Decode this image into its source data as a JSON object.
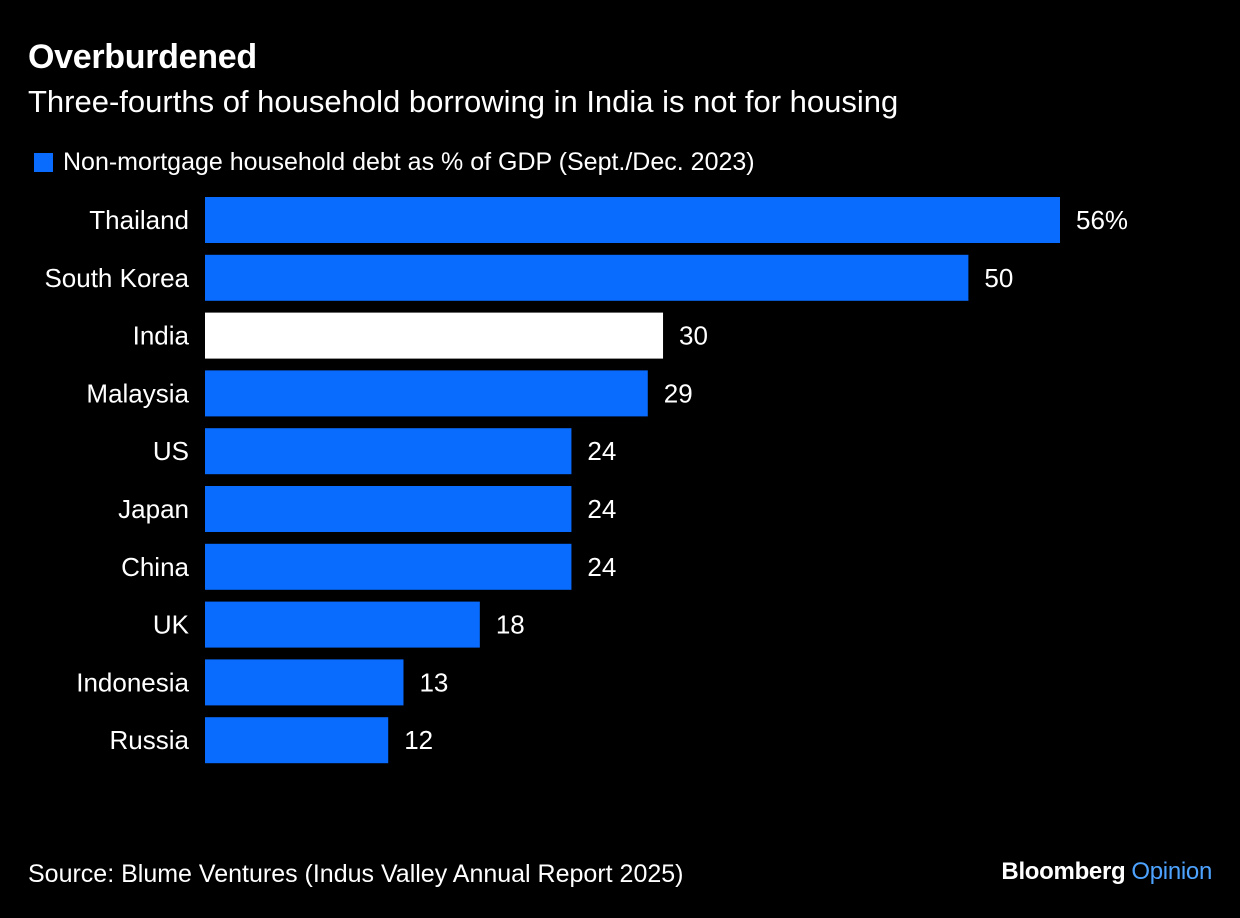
{
  "title": "Overburdened",
  "subtitle": "Three-fourths of household borrowing in India is not for housing",
  "source": "Source: Blume Ventures (Indus Valley Annual Report 2025)",
  "brand": {
    "name": "Bloomberg",
    "suffix": "Opinion",
    "suffix_color": "#4da3ff"
  },
  "colors": {
    "background": "#000000",
    "bar": "#0a6cff",
    "highlight": "#ffffff",
    "text": "#ffffff"
  },
  "chart_data": {
    "type": "bar",
    "orientation": "horizontal",
    "categories": [
      "Thailand",
      "South Korea",
      "India",
      "Malaysia",
      "US",
      "Japan",
      "China",
      "UK",
      "Indonesia",
      "Russia"
    ],
    "series": [
      {
        "name": "Non-mortgage household debt as % of GDP (Sept./Dec. 2023)",
        "values": [
          56,
          50,
          30,
          29,
          24,
          24,
          24,
          18,
          13,
          12
        ]
      }
    ],
    "value_labels": [
      "56%",
      "50",
      "30",
      "29",
      "24",
      "24",
      "24",
      "18",
      "13",
      "12"
    ],
    "highlight_category": "India",
    "xlim": [
      0,
      56
    ],
    "grid": false,
    "legend_position": "top-left",
    "xlabel": "",
    "ylabel": ""
  }
}
